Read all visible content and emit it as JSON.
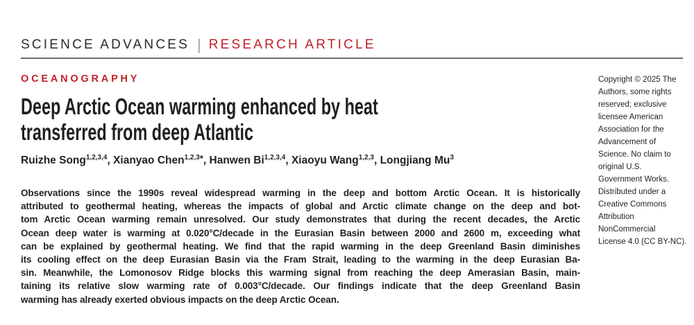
{
  "masthead": {
    "journal": "SCIENCE ADVANCES",
    "separator": "|",
    "article_type": "RESEARCH ARTICLE"
  },
  "article": {
    "category": "OCEANOGRAPHY",
    "title_lines": [
      "Deep Arctic Ocean warming enhanced by heat",
      "transferred from deep Atlantic"
    ],
    "authors": [
      {
        "name": "Ruizhe Song",
        "sup": "1,2,3,4",
        "corresponding": false
      },
      {
        "name": "Xianyao Chen",
        "sup": "1,2,3",
        "corresponding": true
      },
      {
        "name": "Hanwen Bi",
        "sup": "1,2,3,4",
        "corresponding": false
      },
      {
        "name": "Xiaoyu Wang",
        "sup": "1,2,3",
        "corresponding": false
      },
      {
        "name": "Longjiang Mu",
        "sup": "3",
        "corresponding": false
      }
    ],
    "author_separator": ", ",
    "corresponding_marker": "*",
    "abstract_lines": [
      "Observations since the 1990s reveal widespread warming in the deep and bottom Arctic Ocean. It is historically",
      "attributed to geothermal heating, whereas the impacts of global and Arctic climate change on the deep and bot-",
      "tom Arctic Ocean warming remain unresolved. Our study demonstrates that during the recent decades, the Arctic",
      "Ocean deep water is warming at 0.020°C/decade in the Eurasian Basin between 2000 and 2600 m, exceeding what",
      "can be explained by geothermal heating. We find that the rapid warming in the deep Greenland Basin diminishes",
      "its cooling effect on the deep Eurasian Basin via the Fram Strait, leading to the warming in the deep Eurasian Ba-",
      "sin. Meanwhile, the Lomonosov Ridge blocks this warming signal from reaching the deep Amerasian Basin, main-",
      "taining its relative slow warming rate of 0.003°C/decade. Our findings indicate that the deep Greenland Basin",
      "warming has already exerted obvious impacts on the deep Arctic Ocean."
    ]
  },
  "copyright_note": {
    "lines": [
      "Copyright © 2025 The",
      "Authors, some rights",
      "reserved; exclusive",
      "licensee American",
      "Association for the",
      "Advancement of",
      "Science. No claim to",
      "original U.S.",
      "Government Works.",
      "Distributed under a",
      "Creative Commons",
      "Attribution",
      "NonCommercial",
      "License 4.0 (CC BY-NC)."
    ]
  },
  "colors": {
    "accent_red": "#c0202a",
    "text_ink": "#231f20",
    "rule_gray": "#6f6b6c"
  }
}
